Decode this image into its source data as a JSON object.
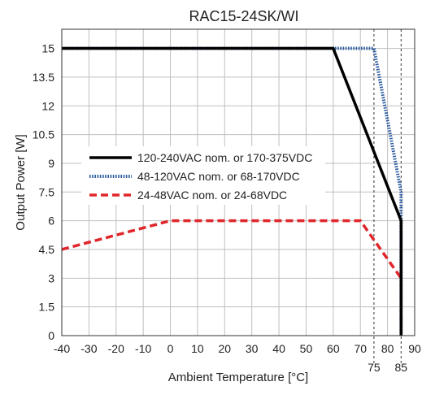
{
  "chart_data": {
    "type": "line",
    "title": "RAC15-24SK/WI",
    "xlabel": "Ambient Temperature [°C]",
    "ylabel": "Output Power [W]",
    "xlim": [
      -40,
      90
    ],
    "ylim": [
      0,
      16
    ],
    "x_ticks": [
      -40,
      -30,
      -20,
      -10,
      0,
      10,
      20,
      30,
      40,
      50,
      60,
      70,
      80,
      90
    ],
    "x_ticks_extra": [
      75,
      85
    ],
    "x_tick_labels": [
      "-40",
      "-30",
      "-20",
      "-10",
      "0",
      "10",
      "20",
      "30",
      "40",
      "50",
      "60",
      "70",
      "80",
      "90"
    ],
    "x_tick_labels_extra": [
      "75",
      "85"
    ],
    "y_ticks": [
      0,
      1.5,
      3,
      4.5,
      6,
      7.5,
      9,
      10.5,
      12,
      13.5,
      15
    ],
    "y_tick_labels": [
      "0",
      "1.5",
      "3",
      "4.5",
      "6",
      "7.5",
      "9",
      "10.5",
      "12",
      "13.5",
      "15"
    ],
    "grid": true,
    "legend": "center-left",
    "series": [
      {
        "name": "120-240VAC nom. or 170-375VDC",
        "color": "#000000",
        "style": "solid",
        "points": [
          [
            -40,
            15
          ],
          [
            60,
            15
          ],
          [
            85,
            6
          ],
          [
            85,
            0
          ]
        ]
      },
      {
        "name": "48-120VAC nom. or 68-170VDC",
        "color": "#2a5a9e",
        "style": "dotted",
        "points": [
          [
            -40,
            15
          ],
          [
            75,
            15
          ],
          [
            85,
            7.5
          ],
          [
            85,
            0
          ]
        ]
      },
      {
        "name": "24-48VAC nom. or 24-68VDC",
        "color": "#e0262b",
        "style": "dashed",
        "points": [
          [
            -40,
            4.5
          ],
          [
            0,
            6
          ],
          [
            70,
            6
          ],
          [
            85,
            3
          ],
          [
            85,
            0
          ]
        ]
      }
    ],
    "reference_lines": [
      75,
      85
    ]
  }
}
